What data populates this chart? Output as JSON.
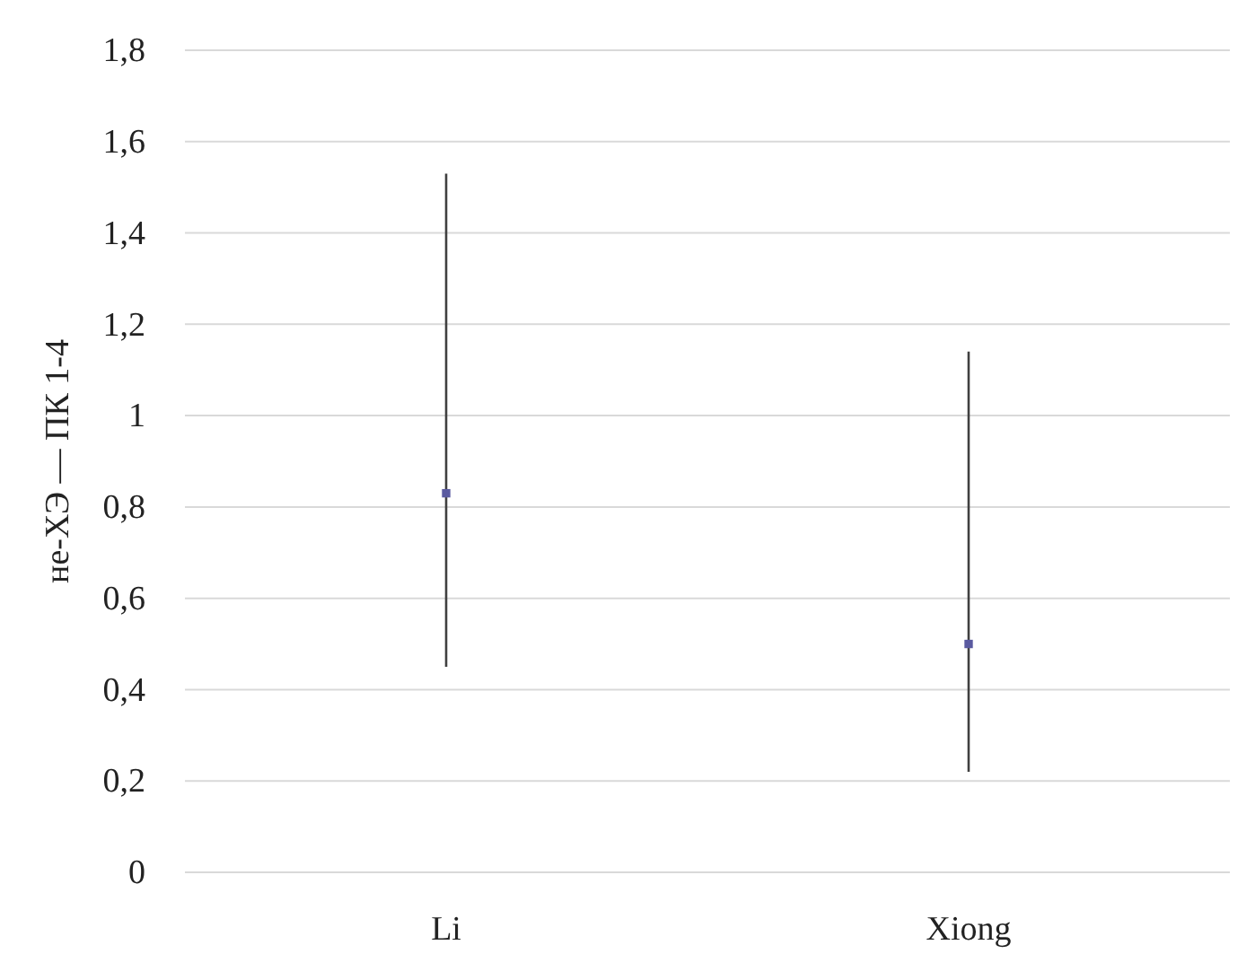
{
  "chart_data": {
    "type": "scatter",
    "ylabel": "не-ХЭ — ПК 1-4",
    "categories": [
      "Li",
      "Xiong"
    ],
    "series": [
      {
        "color": "#5a5aa0",
        "values": [
          0.83,
          0.5
        ],
        "errors": [
          [
            0.45,
            1.53
          ],
          [
            0.22,
            1.14
          ]
        ]
      }
    ],
    "ylim": [
      0,
      1.8
    ],
    "yticks": [
      0,
      {
        "value": 0.2,
        "label": "0,2"
      },
      {
        "value": 0.4,
        "label": "0,4"
      },
      {
        "value": 0.6,
        "label": "0,6"
      },
      {
        "value": 0.8,
        "label": "0,8"
      },
      1,
      {
        "value": 1.2,
        "label": "1,2"
      },
      {
        "value": 1.4,
        "label": "1,4"
      },
      {
        "value": 1.6,
        "label": "1,6"
      },
      {
        "value": 1.8,
        "label": "1,8"
      }
    ],
    "grid": "y",
    "marker": "square"
  }
}
